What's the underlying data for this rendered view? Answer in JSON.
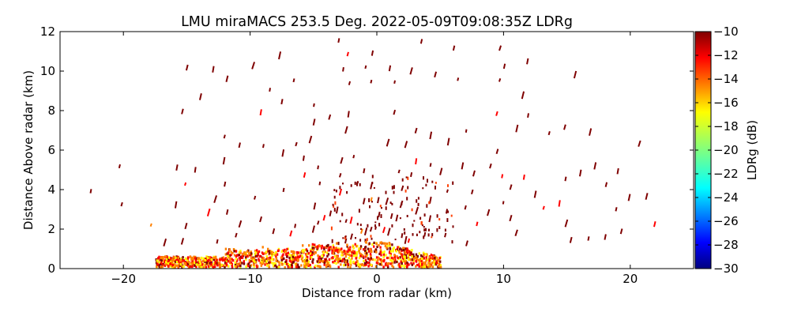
{
  "chart_data": {
    "type": "heatmap",
    "title": "LMU miraMACS 253.5 Deg. 2022-05-09T09:08:35Z  LDRg",
    "xlabel": "Distance from radar (km)",
    "ylabel": "Distance Above radar  (km)",
    "xlim": [
      -25,
      25
    ],
    "ylim": [
      0,
      12
    ],
    "xticks": [
      -20,
      -10,
      0,
      10,
      20
    ],
    "yticks": [
      0,
      2,
      4,
      6,
      8,
      10,
      12
    ],
    "colorbar": {
      "label": "LDRg (dB)",
      "range": [
        -30,
        -10
      ],
      "ticks": [
        -10,
        -12,
        -14,
        -16,
        -18,
        -20,
        -22,
        -24,
        -26,
        -28,
        -30
      ],
      "colormap": [
        "#00007f",
        "#0000ff",
        "#0080ff",
        "#00ffff",
        "#80ff80",
        "#ffff00",
        "#ff8000",
        "#ff0000",
        "#7f0000"
      ]
    },
    "echo_regions": [
      {
        "name": "near-surface clutter band",
        "x_range": [
          -17.5,
          5
        ],
        "y_range": [
          0,
          1.3
        ],
        "ldr_range": [
          -18,
          -10
        ]
      },
      {
        "name": "sparse speckle aloft",
        "x_range": [
          -23,
          23
        ],
        "y_range": [
          0,
          12
        ],
        "ldr_range": [
          -14,
          -10
        ]
      }
    ]
  }
}
